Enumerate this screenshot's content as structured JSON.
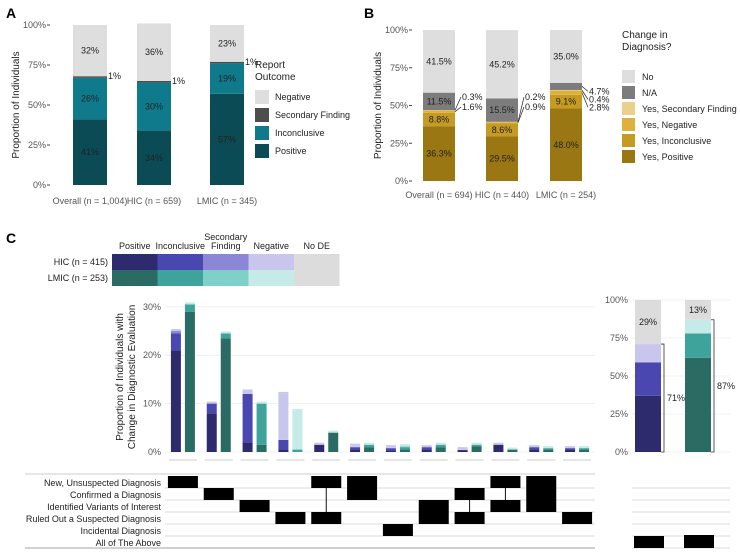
{
  "panels": {
    "a": "A",
    "b": "B",
    "c": "C"
  },
  "chart_data": [
    {
      "type": "bar",
      "stacked": true,
      "panel": "A",
      "ylabel": "Proportion of Individuals",
      "yticks": [
        "0%",
        "25%",
        "50%",
        "75%",
        "100%"
      ],
      "ylim": [
        0,
        100
      ],
      "categories": [
        "Overall (n = 1,004)",
        "HIC (n = 659)",
        "LMIC (n = 345)"
      ],
      "legend_title": [
        "Report",
        "Outcome"
      ],
      "series": [
        {
          "name": "Positive",
          "color": "#0b4b55",
          "values": [
            41,
            34,
            57
          ],
          "labels": [
            "41%",
            "34%",
            "57%"
          ]
        },
        {
          "name": "Inconclusive",
          "color": "#0f7a8c",
          "values": [
            26,
            30,
            19
          ],
          "labels": [
            "26%",
            "30%",
            "19%"
          ]
        },
        {
          "name": "Secondary Finding",
          "color": "#4d4d4d",
          "values": [
            1,
            1,
            1
          ],
          "labels": [
            "1%",
            "1%",
            "1%"
          ]
        },
        {
          "name": "Negative",
          "color": "#dedede",
          "values": [
            32,
            36,
            23
          ],
          "labels": [
            "32%",
            "36%",
            "23%"
          ]
        }
      ],
      "legend_order": [
        "Negative",
        "Secondary Finding",
        "Inconclusive",
        "Positive"
      ]
    },
    {
      "type": "bar",
      "stacked": true,
      "panel": "B",
      "ylabel": "Proportion of Individuals",
      "yticks": [
        "0%",
        "25%",
        "50%",
        "75%",
        "100%"
      ],
      "ylim": [
        0,
        100
      ],
      "categories": [
        "Overall (n = 694)",
        "HIC (n = 440)",
        "LMIC (n = 254)"
      ],
      "legend_title": [
        "Change in",
        "Diagnosis?"
      ],
      "series": [
        {
          "name": "Yes, Positive",
          "color": "#9a7712",
          "values": [
            36.3,
            29.5,
            48.0
          ],
          "labels": [
            "36.3%",
            "29.5%",
            "48.0%"
          ]
        },
        {
          "name": "Yes, Inconclusive",
          "color": "#c69b24",
          "values": [
            8.8,
            8.6,
            9.1
          ],
          "labels": [
            "8.8%",
            "8.6%",
            "9.1%"
          ]
        },
        {
          "name": "Yes, Negative",
          "color": "#dcb23c",
          "values": [
            1.6,
            0.9,
            2.8
          ],
          "labels": [
            "1.6%",
            "0.9%",
            "2.8%"
          ]
        },
        {
          "name": "Yes, Secondary Finding",
          "color": "#ead08c",
          "values": [
            0.3,
            0.2,
            0.4
          ],
          "labels": [
            "0.3%",
            "0.2%",
            "0.4%"
          ]
        },
        {
          "name": "N/A",
          "color": "#7c7c7c",
          "values": [
            11.5,
            15.5,
            4.7
          ],
          "labels": [
            "11.5%",
            "15.5%",
            "4.7%"
          ]
        },
        {
          "name": "No",
          "color": "#dedede",
          "values": [
            41.5,
            45.2,
            35.0
          ],
          "labels": [
            "41.5%",
            "45.2%",
            "35.0%"
          ]
        }
      ],
      "legend_order": [
        "No",
        "N/A",
        "Yes, Secondary Finding",
        "Yes, Negative",
        "Yes, Inconclusive",
        "Yes, Positive"
      ]
    },
    {
      "type": "bar",
      "panel": "C",
      "subtype": "upset",
      "color_legend": {
        "columns": [
          "Positive",
          "Inconclusive",
          "Secondary Finding",
          "Negative",
          "No DE"
        ],
        "rows": [
          {
            "label": "HIC (n = 415)",
            "colors": [
              "#2e2a6e",
              "#4a48b0",
              "#8b86d6",
              "#c9c6ee",
              "#dcdcdc"
            ]
          },
          {
            "label": "LMIC (n = 253)",
            "colors": [
              "#2a6b64",
              "#3ea39a",
              "#7ed0c8",
              "#c4ebe7",
              "#dcdcdc"
            ]
          }
        ]
      },
      "ylabel": [
        "Proportion of Individuals with",
        "Change in Diagnostic Evaluation"
      ],
      "yticks": [
        "0%",
        "10%",
        "20%",
        "30%"
      ],
      "ylim": [
        0,
        31
      ],
      "groups": [
        {
          "hic": [
            21,
            3.5,
            0.5,
            0
          ],
          "lmic": [
            29,
            1.5,
            0,
            0
          ]
        },
        {
          "hic": [
            8,
            2,
            0,
            0
          ],
          "lmic": [
            23.5,
            1,
            0,
            0
          ]
        },
        {
          "hic": [
            2,
            10,
            0,
            0.5
          ],
          "lmic": [
            1.5,
            8.5,
            0,
            0
          ]
        },
        {
          "hic": [
            0.5,
            2,
            0,
            9.5
          ],
          "lmic": [
            0,
            0.5,
            0,
            8
          ]
        },
        {
          "hic": [
            1.5,
            0,
            0,
            0
          ],
          "lmic": [
            4,
            0,
            0,
            0
          ]
        },
        {
          "hic": [
            0.5,
            0.5,
            0,
            0.3
          ],
          "lmic": [
            1,
            0.5,
            0,
            0
          ]
        },
        {
          "hic": [
            0.3,
            0.5,
            0,
            0.2
          ],
          "lmic": [
            0.5,
            0.5,
            0.2,
            0
          ]
        },
        {
          "hic": [
            0.5,
            0.5,
            0,
            0
          ],
          "lmic": [
            1,
            0.5,
            0,
            0
          ]
        },
        {
          "hic": [
            0.5,
            0,
            0,
            0.1
          ],
          "lmic": [
            1.2,
            0.3,
            0,
            0
          ]
        },
        {
          "hic": [
            1.5,
            0,
            0,
            0
          ],
          "lmic": [
            0.5,
            0,
            0,
            0
          ]
        },
        {
          "hic": [
            0.5,
            0.5,
            0,
            0
          ],
          "lmic": [
            0.5,
            0.3,
            0,
            0
          ]
        },
        {
          "hic": [
            0.5,
            0.3,
            0,
            0
          ],
          "lmic": [
            0.5,
            0.3,
            0,
            0
          ]
        }
      ],
      "sets": [
        "New, Unsuspected Diagnosis",
        "Confirmed a Diagnosis",
        "Identified Variants of Interest",
        "Ruled Out a Suspected Diagnosis",
        "Incidental Diagnosis",
        "All of The Above"
      ],
      "membership": [
        [
          0
        ],
        [
          1
        ],
        [
          2
        ],
        [
          3
        ],
        [
          0,
          3
        ],
        [
          0,
          1
        ],
        [
          4
        ],
        [
          2,
          3
        ],
        [
          1,
          3
        ],
        [
          0,
          2
        ],
        [
          0,
          1,
          2
        ],
        [
          3
        ]
      ],
      "summary": {
        "yticks": [
          "0%",
          "25%",
          "50%",
          "75%",
          "100%"
        ],
        "hic": {
          "values": [
            37,
            22,
            12,
            29
          ],
          "top_label": "29%",
          "bracket_label": "71%"
        },
        "lmic": {
          "values": [
            62,
            16,
            9,
            13
          ],
          "top_label": "13%",
          "bracket_label": "87%"
        }
      }
    }
  ]
}
